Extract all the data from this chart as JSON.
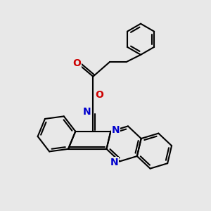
{
  "bg_color": "#e8e8e8",
  "bond_color": "#000000",
  "n_color": "#0000cc",
  "o_color": "#cc0000",
  "bond_width": 1.5,
  "font_size": 9,
  "fig_width": 3.0,
  "fig_height": 3.0,
  "dpi": 100,
  "xlim": [
    0,
    10
  ],
  "ylim": [
    0,
    10
  ]
}
